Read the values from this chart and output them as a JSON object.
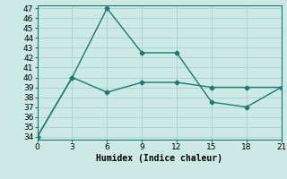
{
  "x": [
    0,
    3,
    6,
    9,
    12,
    15,
    18,
    21
  ],
  "line1_y": [
    34,
    40,
    47,
    42.5,
    42.5,
    37.5,
    37.0,
    39.0
  ],
  "line2_y": [
    34,
    40,
    38.5,
    39.5,
    39.5,
    39.0,
    39.0,
    39.0
  ],
  "line_color": "#1a7a6e",
  "background_color": "#cce9e5",
  "grid_color": "#b0d4cf",
  "xlabel": "Humidex (Indice chaleur)",
  "ylim_min": 34,
  "ylim_max": 47,
  "xlim_min": 0,
  "xlim_max": 21,
  "yticks": [
    34,
    35,
    36,
    37,
    38,
    39,
    40,
    41,
    42,
    43,
    44,
    45,
    46,
    47
  ],
  "xticks": [
    0,
    3,
    6,
    9,
    12,
    15,
    18,
    21
  ],
  "marker": "D",
  "marker_size": 2.5,
  "linewidth": 1.0,
  "tick_labelsize": 6.5,
  "xlabel_fontsize": 7.0
}
